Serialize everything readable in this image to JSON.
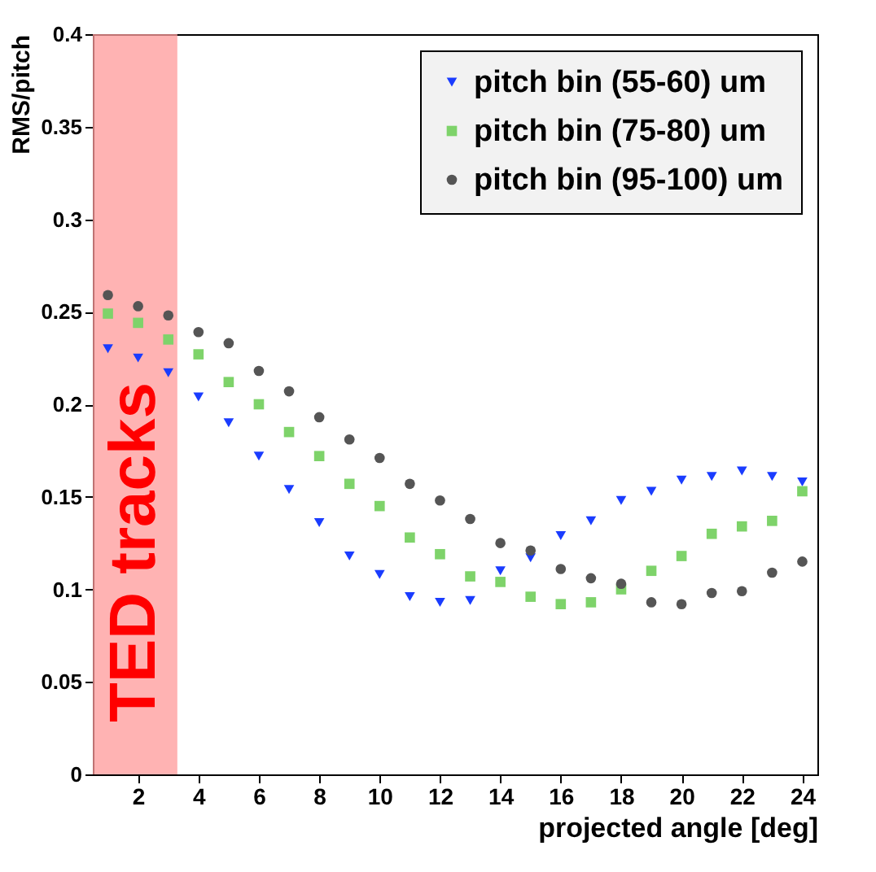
{
  "chart_data": {
    "type": "scatter",
    "xlabel": "projected angle [deg]",
    "ylabel": "RMS/pitch",
    "x": [
      1,
      2,
      3,
      4,
      5,
      6,
      7,
      8,
      9,
      10,
      11,
      12,
      13,
      14,
      15,
      16,
      17,
      18,
      19,
      20,
      21,
      22,
      23,
      24
    ],
    "series": [
      {
        "name": "pitch bin (55-60) um",
        "color": "#1a3cff",
        "marker": "triangle",
        "values": [
          0.23,
          0.225,
          0.217,
          0.204,
          0.19,
          0.172,
          0.154,
          0.136,
          0.118,
          0.108,
          0.096,
          0.093,
          0.094,
          0.11,
          0.117,
          0.129,
          0.137,
          0.148,
          0.153,
          0.159,
          0.161,
          0.164,
          0.161,
          0.158
        ]
      },
      {
        "name": "pitch bin (75-80) um",
        "color": "#7ed36a",
        "marker": "square",
        "values": [
          0.249,
          0.244,
          0.235,
          0.227,
          0.212,
          0.2,
          0.185,
          0.172,
          0.157,
          0.145,
          0.128,
          0.119,
          0.107,
          0.104,
          0.096,
          0.092,
          0.093,
          0.1,
          0.11,
          0.118,
          0.13,
          0.134,
          0.137,
          0.153
        ]
      },
      {
        "name": "pitch bin (95-100) um",
        "color": "#555555",
        "marker": "circle",
        "values": [
          0.259,
          0.253,
          0.248,
          0.239,
          0.233,
          0.218,
          0.207,
          0.193,
          0.181,
          0.171,
          0.157,
          0.148,
          0.138,
          0.125,
          0.121,
          0.111,
          0.106,
          0.103,
          0.093,
          0.092,
          0.098,
          0.099,
          0.109,
          0.115
        ]
      }
    ],
    "xlim": [
      0.5,
      24.5
    ],
    "xticks": [
      2,
      4,
      6,
      8,
      10,
      12,
      14,
      16,
      18,
      20,
      22,
      24
    ],
    "ylim": [
      0,
      0.4
    ],
    "yticks": [
      0,
      0.05,
      0.1,
      0.15,
      0.2,
      0.25,
      0.3,
      0.35,
      0.4
    ],
    "bands": [
      {
        "axis": "x",
        "from": 0.5,
        "to": 3.3,
        "label": "TED tracks",
        "color": "#ff9a9a"
      }
    ],
    "legend": "top right",
    "grid": false
  }
}
